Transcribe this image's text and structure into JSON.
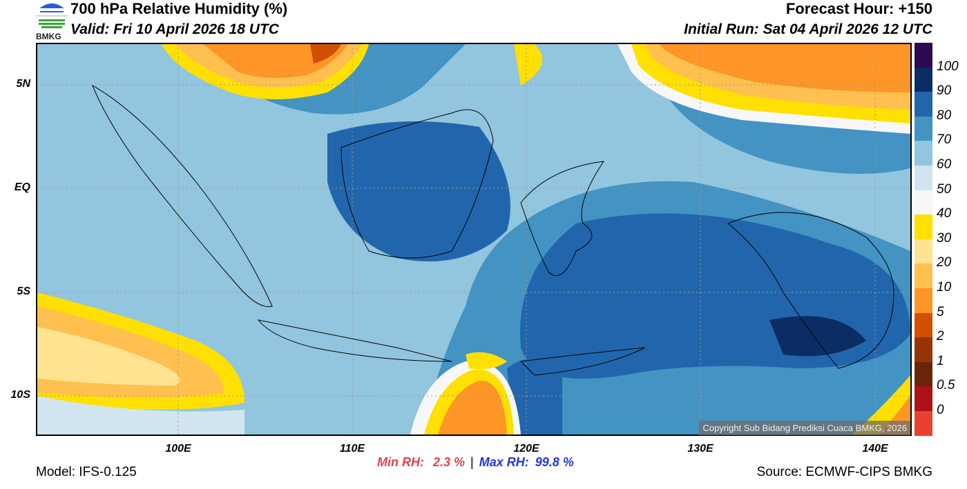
{
  "header": {
    "title": "700 hPa Relative Humidity (%)",
    "valid": "Valid: Fri 10 April 2026 18 UTC",
    "forecast_hour": "Forecast Hour: +150",
    "initial_run": "Initial Run: Sat 04 April 2026 12 UTC",
    "logo_text": "BMKG"
  },
  "map": {
    "lat_labels": [
      "5N",
      "EQ",
      "5S",
      "10S"
    ],
    "lon_labels": [
      "100E",
      "110E",
      "120E",
      "130E",
      "140E"
    ],
    "copyright": "Copyright Sub Bidang Prediksi Cuaca BMKG, 2026",
    "extent": {
      "lon": [
        92,
        142.3
      ],
      "lat": [
        -12,
        7
      ]
    }
  },
  "colorbar": {
    "labels": [
      "100",
      "90",
      "80",
      "70",
      "60",
      "50",
      "40",
      "30",
      "20",
      "10",
      "5",
      "2",
      "1",
      "0.5",
      "0"
    ],
    "colors": [
      "#2d0a52",
      "#0c2d63",
      "#2166ac",
      "#4393c3",
      "#92c5de",
      "#d1e5f0",
      "#f7f7f7",
      "#ffe000",
      "#ffe391",
      "#ffc04f",
      "#fd9527",
      "#d04f00",
      "#973406",
      "#692508",
      "#ae1218",
      "#e84132"
    ]
  },
  "footer": {
    "min_label": "Min RH:",
    "min_value": "2.3 %",
    "separator": "|",
    "max_label": "Max RH:",
    "max_value": "99.8 %",
    "model": "Model: IFS-0.125",
    "source": "Source: ECMWF-CIPS BMKG"
  }
}
